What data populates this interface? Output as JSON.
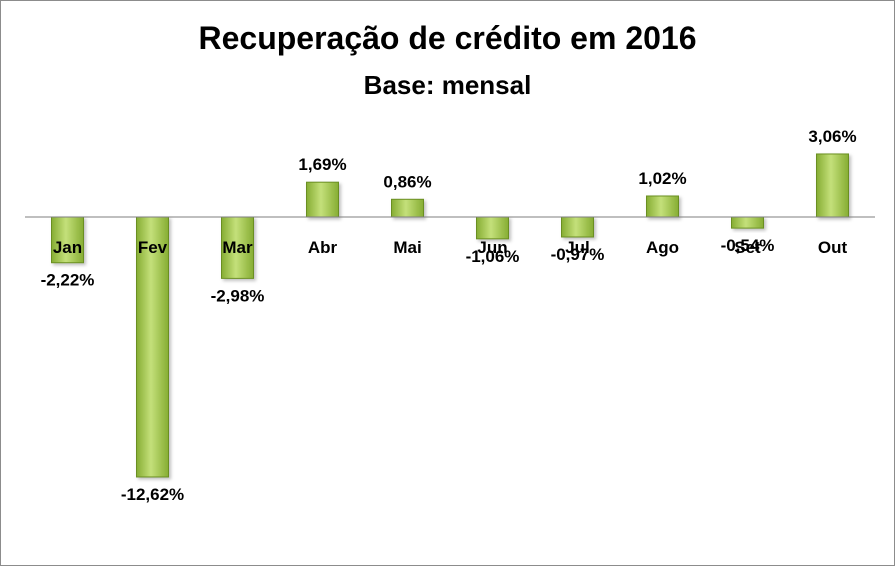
{
  "chart_data": {
    "type": "bar",
    "title": "Recuperação de crédito em 2016",
    "subtitle": "Base: mensal",
    "categories": [
      "Jan",
      "Fev",
      "Mar",
      "Abr",
      "Mai",
      "Jun",
      "Jul",
      "Ago",
      "Set",
      "Out"
    ],
    "values": [
      -2.22,
      -12.62,
      -2.98,
      1.69,
      0.86,
      -1.06,
      -0.97,
      1.02,
      -0.54,
      3.06
    ],
    "data_labels": [
      "-2,22%",
      "-12,62%",
      "-2,98%",
      "1,69%",
      "0,86%",
      "-1,06%",
      "-0,97%",
      "1,02%",
      "-0,54%",
      "3,06%"
    ],
    "xlabel": "",
    "ylabel": "",
    "ylim": [
      -13,
      3.5
    ],
    "grid": false,
    "legend": "none",
    "colors": {
      "bar_fill_light": "#c4e07a",
      "bar_fill_dark": "#86ad33",
      "bar_stroke": "#6b8f23",
      "axis": "#7f7f7f"
    }
  }
}
